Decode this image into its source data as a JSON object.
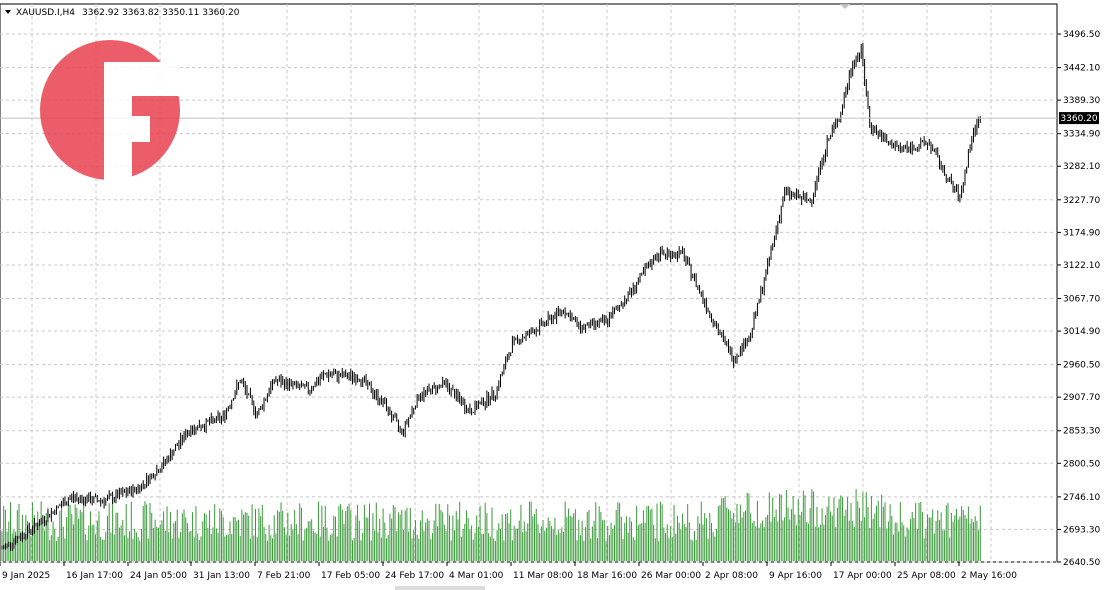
{
  "header": {
    "symbol": "XAUUSD.I,H4",
    "ohlc": "3362.92 3363.82 3350.11 3360.20"
  },
  "chart_data": {
    "type": "bar",
    "subtype": "ohlc-with-volume",
    "title": "",
    "xlabel": "",
    "ylabel": "",
    "ylim": [
      2640.5,
      3523.5
    ],
    "grid": true,
    "current_price": "3360.20",
    "price_ticks": [
      "3496.50",
      "3442.10",
      "3389.30",
      "3334.90",
      "3282.10",
      "3227.70",
      "3174.90",
      "3122.10",
      "3067.70",
      "3014.90",
      "2960.50",
      "2907.70",
      "2853.30",
      "2800.50",
      "2746.10",
      "2693.30",
      "2640.50"
    ],
    "time_ticks": [
      "9 Jan 2025",
      "16 Jan 17:00",
      "24 Jan 05:00",
      "31 Jan 13:00",
      "7 Feb 21:00",
      "17 Feb 05:00",
      "24 Feb 17:00",
      "4 Mar 01:00",
      "11 Mar 08:00",
      "18 Mar 16:00",
      "26 Mar 00:00",
      "2 Apr 08:00",
      "9 Apr 16:00",
      "17 Apr 00:00",
      "25 Apr 08:00",
      "2 May 16:00"
    ],
    "close_anchors": [
      [
        0,
        2662
      ],
      [
        20,
        2700
      ],
      [
        40,
        2745
      ],
      [
        60,
        2740
      ],
      [
        80,
        2760
      ],
      [
        95,
        2800
      ],
      [
        110,
        2855
      ],
      [
        130,
        2875
      ],
      [
        140,
        2935
      ],
      [
        150,
        2880
      ],
      [
        160,
        2935
      ],
      [
        180,
        2920
      ],
      [
        190,
        2945
      ],
      [
        210,
        2940
      ],
      [
        225,
        2895
      ],
      [
        235,
        2850
      ],
      [
        245,
        2910
      ],
      [
        260,
        2930
      ],
      [
        275,
        2885
      ],
      [
        290,
        2915
      ],
      [
        300,
        2995
      ],
      [
        315,
        3020
      ],
      [
        330,
        3050
      ],
      [
        340,
        3020
      ],
      [
        355,
        3030
      ],
      [
        370,
        3080
      ],
      [
        385,
        3140
      ],
      [
        400,
        3140
      ],
      [
        410,
        3080
      ],
      [
        420,
        3020
      ],
      [
        430,
        2970
      ],
      [
        440,
        3010
      ],
      [
        450,
        3120
      ],
      [
        460,
        3240
      ],
      [
        475,
        3225
      ],
      [
        485,
        3320
      ],
      [
        493,
        3370
      ],
      [
        500,
        3450
      ],
      [
        505,
        3470
      ],
      [
        510,
        3350
      ],
      [
        520,
        3320
      ],
      [
        530,
        3310
      ],
      [
        545,
        3320
      ],
      [
        555,
        3265
      ],
      [
        563,
        3230
      ],
      [
        570,
        3330
      ],
      [
        575,
        3360
      ]
    ],
    "volume_note": "volume histogram along bottom"
  }
}
